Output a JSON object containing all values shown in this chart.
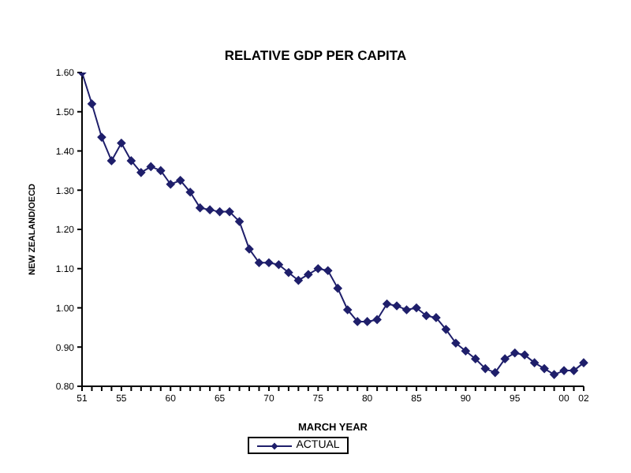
{
  "chart_data": {
    "type": "line",
    "title": "RELATIVE GDP PER CAPITA",
    "xlabel": "MARCH YEAR",
    "ylabel": "NEW ZEALAND/OECD",
    "categories": [
      "51",
      null,
      null,
      null,
      "55",
      null,
      null,
      null,
      null,
      "60",
      null,
      null,
      null,
      null,
      "65",
      null,
      null,
      null,
      null,
      "70",
      null,
      null,
      null,
      null,
      "75",
      null,
      null,
      null,
      null,
      "80",
      null,
      null,
      null,
      null,
      "85",
      null,
      null,
      null,
      null,
      "90",
      null,
      null,
      null,
      null,
      "95",
      null,
      null,
      null,
      null,
      "00",
      null,
      "02"
    ],
    "series": [
      {
        "name": "ACTUAL",
        "color": "#1f1f6b",
        "values": [
          1.6,
          1.52,
          1.435,
          1.375,
          1.42,
          1.375,
          1.345,
          1.36,
          1.35,
          1.315,
          1.325,
          1.295,
          1.255,
          1.25,
          1.245,
          1.245,
          1.22,
          1.15,
          1.115,
          1.115,
          1.11,
          1.09,
          1.07,
          1.085,
          1.1,
          1.095,
          1.05,
          0.995,
          0.965,
          0.965,
          0.97,
          1.01,
          1.005,
          0.995,
          1.0,
          0.98,
          0.975,
          0.945,
          0.91,
          0.89,
          0.87,
          0.845,
          0.835,
          0.87,
          0.885,
          0.88,
          0.86,
          0.845,
          0.83,
          0.84,
          0.84,
          0.86
        ]
      }
    ],
    "ylim": [
      0.8,
      1.6
    ],
    "yticks": [
      {
        "value": 0.8,
        "label": "0.80"
      },
      {
        "value": 0.9,
        "label": "0.90"
      },
      {
        "value": 1.0,
        "label": "1.00"
      },
      {
        "value": 1.1,
        "label": "1.10"
      },
      {
        "value": 1.2,
        "label": "1.20"
      },
      {
        "value": 1.3,
        "label": "1.30"
      },
      {
        "value": 1.4,
        "label": "1.40"
      },
      {
        "value": 1.5,
        "label": "1.50"
      },
      {
        "value": 1.6,
        "label": "1.60"
      }
    ],
    "grid": false,
    "legend": "bottom",
    "marker": "diamond",
    "line_style": "solid"
  }
}
